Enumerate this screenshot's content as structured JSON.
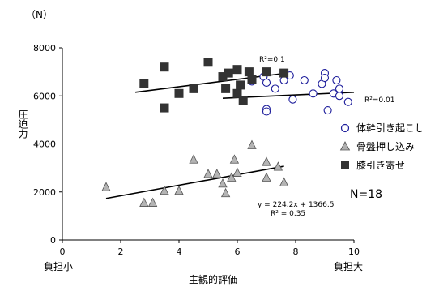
{
  "chart_data": {
    "type": "scatter",
    "unit_label": "（N）",
    "ylabel": "圧迫力",
    "xlabel": "主観的評価",
    "x_left_label": "負担小",
    "x_right_label": "負担大",
    "xlim": [
      0,
      10
    ],
    "ylim": [
      0,
      8000
    ],
    "xticks": [
      0,
      2,
      4,
      6,
      8,
      10
    ],
    "yticks": [
      0,
      2000,
      4000,
      6000,
      8000
    ],
    "legend_position": "right",
    "series": [
      {
        "name": "体幹引き起こし",
        "marker": "circle-open",
        "color": "#1a1a9a",
        "points": [
          [
            5.6,
            6300
          ],
          [
            6.5,
            6600
          ],
          [
            6.9,
            6800
          ],
          [
            7.0,
            6550
          ],
          [
            7.0,
            5450
          ],
          [
            7.0,
            5350
          ],
          [
            7.3,
            6300
          ],
          [
            7.6,
            6650
          ],
          [
            7.8,
            6850
          ],
          [
            7.9,
            5850
          ],
          [
            8.3,
            6650
          ],
          [
            8.6,
            6100
          ],
          [
            8.9,
            6500
          ],
          [
            9.0,
            6950
          ],
          [
            9.0,
            6750
          ],
          [
            9.1,
            5400
          ],
          [
            9.3,
            6100
          ],
          [
            9.4,
            6650
          ],
          [
            9.5,
            6300
          ],
          [
            9.5,
            6000
          ],
          [
            9.8,
            5750
          ]
        ],
        "fit": {
          "x_range": [
            5.5,
            10
          ],
          "y_start": 5900,
          "y_end": 6150
        },
        "r2_label": "R²=0.01"
      },
      {
        "name": "骨盤押し込み",
        "marker": "triangle",
        "color": "#999999",
        "points": [
          [
            1.5,
            2200
          ],
          [
            2.8,
            1550
          ],
          [
            3.1,
            1550
          ],
          [
            3.5,
            2050
          ],
          [
            4.0,
            2050
          ],
          [
            4.5,
            3350
          ],
          [
            5.0,
            2750
          ],
          [
            5.3,
            2750
          ],
          [
            5.5,
            2350
          ],
          [
            5.6,
            1950
          ],
          [
            5.8,
            2600
          ],
          [
            5.9,
            3350
          ],
          [
            6.0,
            2800
          ],
          [
            6.5,
            3950
          ],
          [
            7.0,
            3250
          ],
          [
            7.0,
            2600
          ],
          [
            7.4,
            3050
          ],
          [
            7.6,
            2400
          ]
        ],
        "fit": {
          "x_range": [
            1.5,
            7.6
          ],
          "y_start": 1730,
          "y_end": 3070
        },
        "equation_label": "y = 224.2x + 1366.5",
        "r2_label": "R² = 0.35"
      },
      {
        "name": "膝引き寄せ",
        "marker": "square",
        "color": "#333333",
        "points": [
          [
            2.8,
            6500
          ],
          [
            3.5,
            7200
          ],
          [
            3.5,
            5500
          ],
          [
            4.0,
            6100
          ],
          [
            4.5,
            6300
          ],
          [
            5.0,
            7400
          ],
          [
            5.5,
            6800
          ],
          [
            5.6,
            6300
          ],
          [
            5.7,
            6950
          ],
          [
            6.0,
            7100
          ],
          [
            6.0,
            6100
          ],
          [
            6.1,
            6450
          ],
          [
            6.2,
            5800
          ],
          [
            6.4,
            7000
          ],
          [
            6.5,
            6700
          ],
          [
            7.0,
            7000
          ],
          [
            7.6,
            6950
          ]
        ],
        "fit": {
          "x_range": [
            2.5,
            7.7
          ],
          "y_start": 6150,
          "y_end": 6950
        },
        "r2_label": "R²=0.1"
      }
    ],
    "n_label": "N=18"
  }
}
